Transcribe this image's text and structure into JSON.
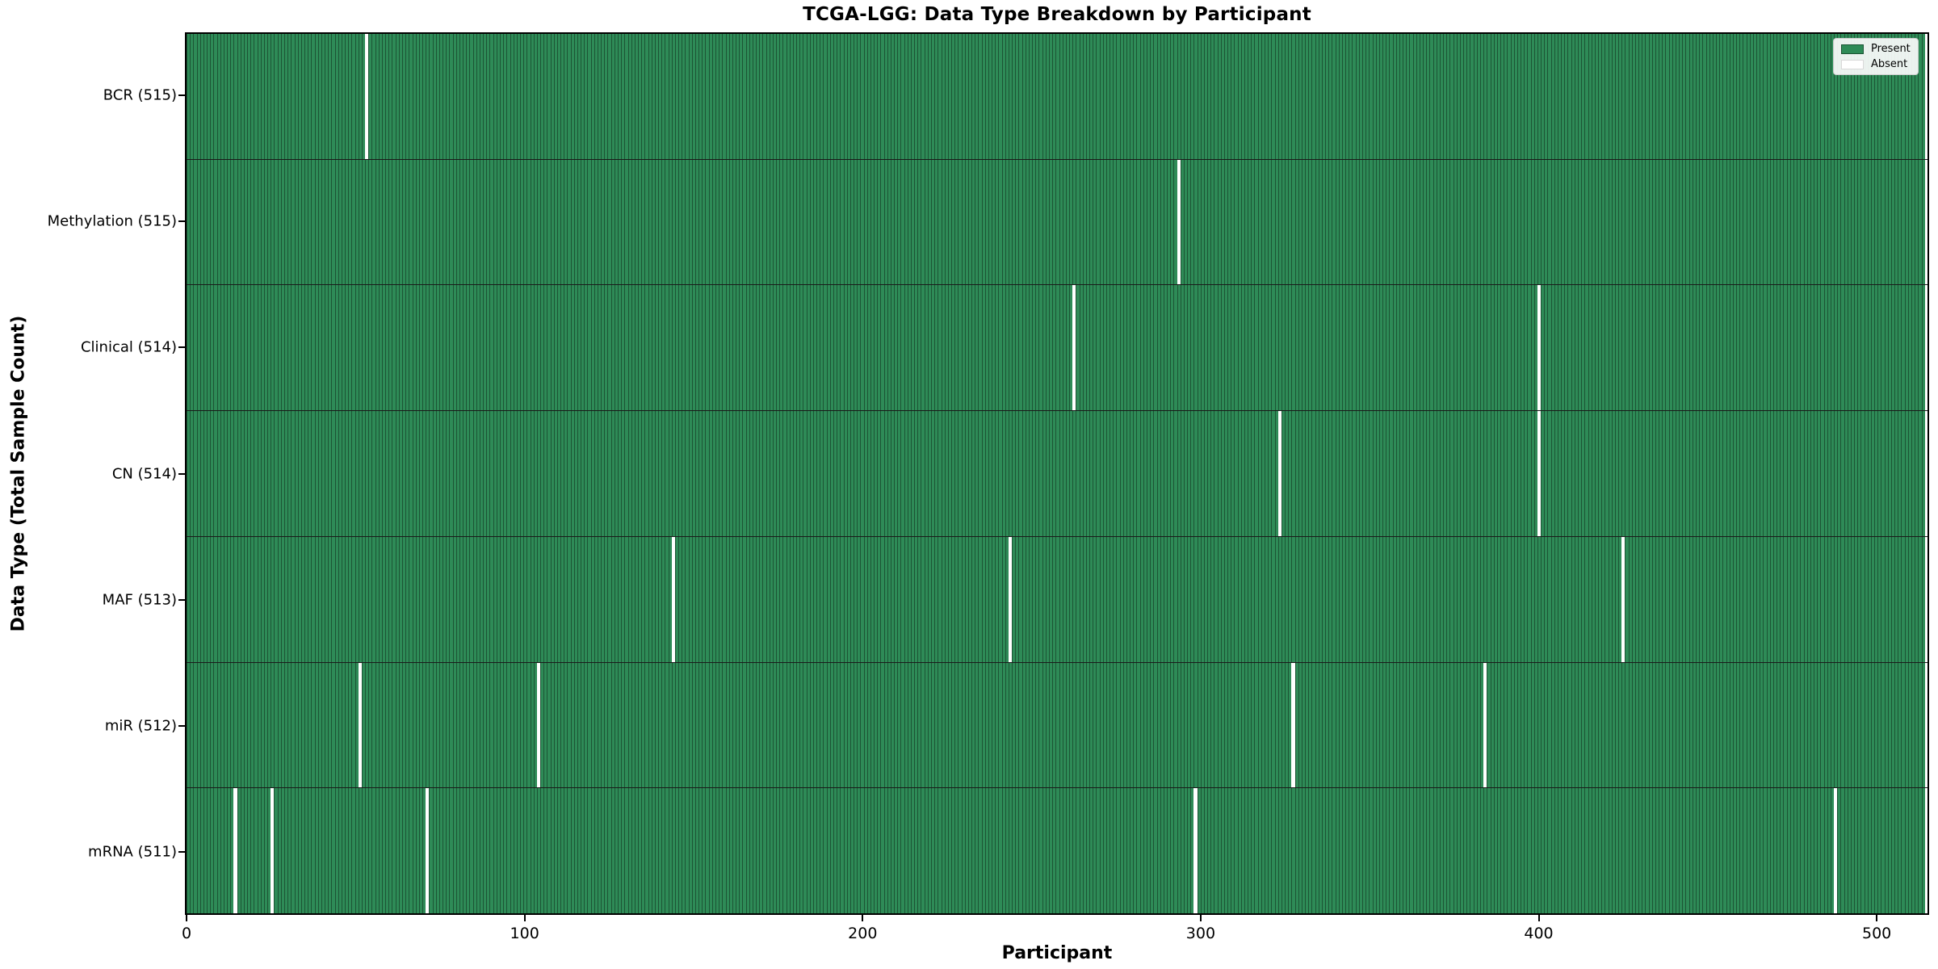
{
  "title": "TCGA-LGG: Data Type Breakdown by Participant",
  "axes": {
    "xlabel": "Participant",
    "ylabel": "Data Type (Total Sample Count)"
  },
  "legend": {
    "present_label": "Present",
    "absent_label": "Absent",
    "position": "upper right"
  },
  "colors": {
    "present": "#2e8b57",
    "present_edge": "#1c5434",
    "absent": "#ffffff",
    "row_divider": "#1a1a1a",
    "axis": "#000000"
  },
  "chart_data": {
    "type": "heatmap",
    "title": "TCGA-LGG: Data Type Breakdown by Participant",
    "xlabel": "Participant",
    "ylabel": "Data Type (Total Sample Count)",
    "n_participants": 516,
    "x_range": [
      0,
      515
    ],
    "x_ticks": [
      0,
      100,
      200,
      300,
      400,
      500
    ],
    "grid": false,
    "legend_entries": [
      "Present",
      "Absent"
    ],
    "legend_position": "upper right",
    "rows": [
      {
        "label": "BCR (515)",
        "data_type": "BCR",
        "present_count": 515,
        "absent_count": 1,
        "absent_participants": [
          53
        ]
      },
      {
        "label": "Methylation (515)",
        "data_type": "Methylation",
        "present_count": 515,
        "absent_count": 1,
        "absent_participants": [
          294
        ]
      },
      {
        "label": "Clinical (514)",
        "data_type": "Clinical",
        "present_count": 514,
        "absent_count": 2,
        "absent_participants": [
          263,
          401
        ]
      },
      {
        "label": "CN (514)",
        "data_type": "CN",
        "present_count": 514,
        "absent_count": 2,
        "absent_participants": [
          324,
          401
        ]
      },
      {
        "label": "MAF (513)",
        "data_type": "MAF",
        "present_count": 513,
        "absent_count": 3,
        "absent_participants": [
          144,
          244,
          426
        ]
      },
      {
        "label": "miR (512)",
        "data_type": "miR",
        "present_count": 512,
        "absent_count": 4,
        "absent_participants": [
          51,
          104,
          328,
          385
        ]
      },
      {
        "label": "mRNA (511)",
        "data_type": "mRNA",
        "present_count": 511,
        "absent_count": 5,
        "absent_participants": [
          14,
          25,
          71,
          299,
          489
        ]
      }
    ]
  }
}
